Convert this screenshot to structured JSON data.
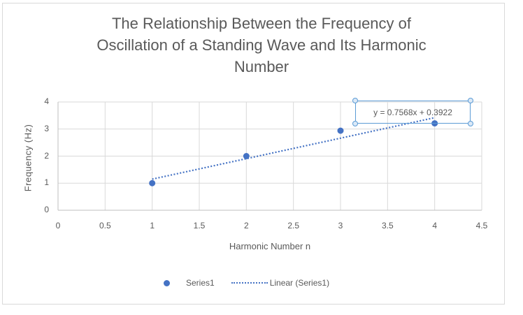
{
  "chart_data": {
    "type": "scatter",
    "title": "The Relationship Between the Frequency of Oscillation of a Standing Wave and Its Harmonic Number",
    "title_lines": [
      "The Relationship Between the Frequency of",
      "Oscillation of a Standing Wave and Its Harmonic",
      "Number"
    ],
    "xlabel": "Harmonic Number n",
    "ylabel": "Frequency (Hz)",
    "xlim": [
      0,
      4.5
    ],
    "ylim": [
      0,
      4
    ],
    "x_ticks": [
      "0",
      "0.5",
      "1",
      "1.5",
      "2",
      "2.5",
      "3",
      "3.5",
      "4",
      "4.5"
    ],
    "y_ticks": [
      "0",
      "1",
      "2",
      "3",
      "4"
    ],
    "grid": true,
    "legend_position": "bottom",
    "series": [
      {
        "name": "Series1",
        "color": "#4472c4",
        "x": [
          1,
          2,
          3,
          4
        ],
        "y": [
          1.0,
          2.0,
          2.94,
          3.21
        ]
      }
    ],
    "trendline": {
      "name": "Linear (Series1)",
      "type": "linear",
      "slope": 0.7568,
      "intercept": 0.3922,
      "x_range": [
        1,
        4
      ],
      "style": "dotted",
      "color": "#4472c4",
      "equation_label": "y = 0.7568x + 0.3922"
    }
  },
  "legend": {
    "series_label": "Series1",
    "trendline_label": "Linear (Series1)"
  }
}
